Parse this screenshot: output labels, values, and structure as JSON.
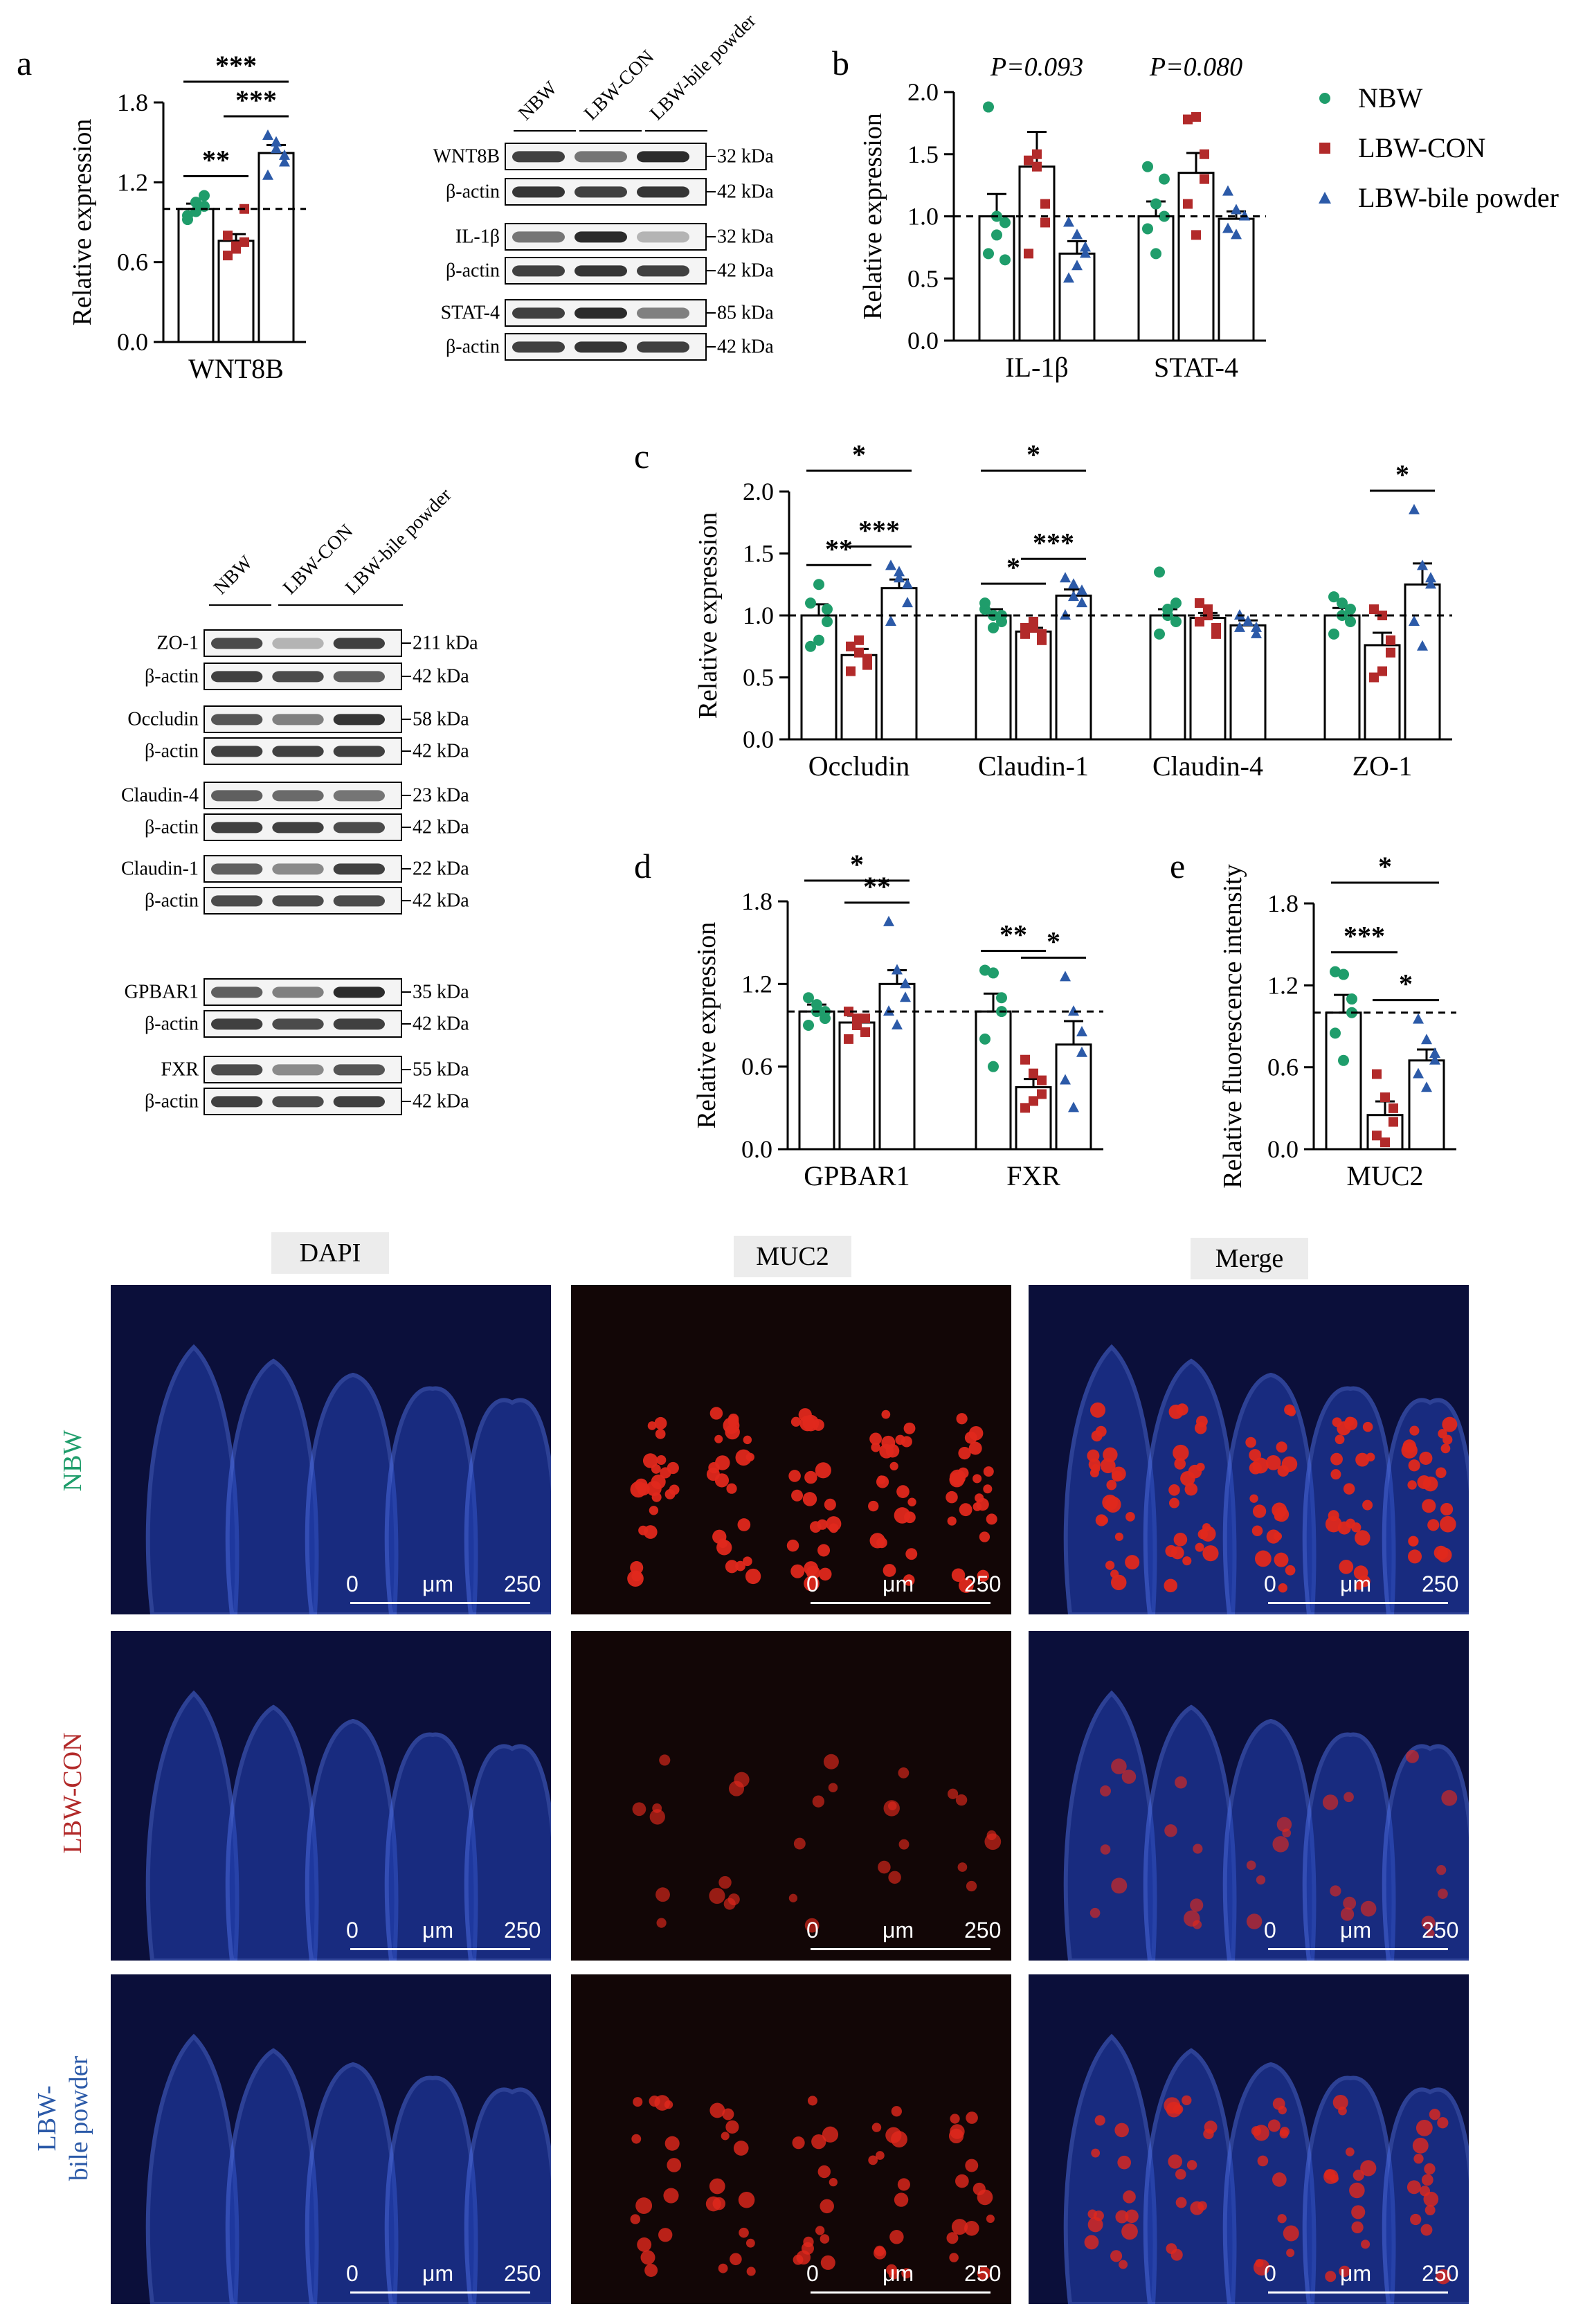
{
  "figure": {
    "panel_labels": [
      "a",
      "b",
      "c",
      "d",
      "e"
    ],
    "groups": [
      "NBW",
      "LBW-CON",
      "LBW-bile powder"
    ],
    "group_colors": {
      "NBW": "#1f9d6b",
      "LBW-CON": "#b22a2a",
      "LBW-bile powder": "#2c5aa8"
    },
    "legend": {
      "items": [
        "NBW",
        "LBW-CON",
        "LBW-bile powder"
      ],
      "placement": "right of panel b"
    }
  },
  "western_blot_a": {
    "lanes": [
      "NBW",
      "LBW-CON",
      "LBW-bile powder"
    ],
    "rows": [
      {
        "label": "WNT8B",
        "kda": "32 kDa"
      },
      {
        "label": "β-actin",
        "kda": "42 kDa"
      },
      {
        "label": "IL-1β",
        "kda": "32 kDa"
      },
      {
        "label": "β-actin",
        "kda": "42 kDa"
      },
      {
        "label": "STAT-4",
        "kda": "85 kDa"
      },
      {
        "label": "β-actin",
        "kda": "42 kDa"
      }
    ]
  },
  "western_blot_c": {
    "lanes": [
      "NBW",
      "LBW-CON",
      "LBW-bile powder"
    ],
    "rows": [
      {
        "label": "ZO-1",
        "kda": "211 kDa"
      },
      {
        "label": "β-actin",
        "kda": "42 kDa"
      },
      {
        "label": "Occludin",
        "kda": "58 kDa"
      },
      {
        "label": "β-actin",
        "kda": "42 kDa"
      },
      {
        "label": "Claudin-4",
        "kda": "23 kDa"
      },
      {
        "label": "β-actin",
        "kda": "42 kDa"
      },
      {
        "label": "Claudin-1",
        "kda": "22 kDa"
      },
      {
        "label": "β-actin",
        "kda": "42 kDa"
      },
      {
        "label": "GPBAR1",
        "kda": "35 kDa"
      },
      {
        "label": "β-actin",
        "kda": "42 kDa"
      },
      {
        "label": "FXR",
        "kda": "55 kDa"
      },
      {
        "label": "β-actin",
        "kda": "42 kDa"
      }
    ]
  },
  "chart_data": [
    {
      "panel": "a",
      "type": "bar",
      "ylabel": "Relative expression",
      "ylim": [
        0,
        1.8
      ],
      "yticks": [
        "0.0",
        "0.6",
        "1.2",
        "1.8"
      ],
      "categories": [
        "WNT8B"
      ],
      "series": [
        {
          "name": "NBW",
          "values": [
            1.0
          ],
          "sem": [
            0.04
          ],
          "points": [
            [
              0.95,
              1.05,
              1.1,
              0.92,
              0.98,
              1.02
            ]
          ]
        },
        {
          "name": "LBW-CON",
          "values": [
            0.76
          ],
          "sem": [
            0.05
          ],
          "points": [
            [
              0.65,
              0.7,
              0.75,
              0.8,
              0.72,
              1.0
            ]
          ]
        },
        {
          "name": "LBW-bile powder",
          "values": [
            1.42
          ],
          "sem": [
            0.06
          ],
          "points": [
            [
              1.55,
              1.5,
              1.4,
              1.25,
              1.45,
              1.35
            ]
          ]
        }
      ],
      "reference_line": 1.0,
      "significance": [
        {
          "pair": [
            0,
            1
          ],
          "label": "**",
          "cat": 0
        },
        {
          "pair": [
            1,
            2
          ],
          "label": "***",
          "cat": 0
        },
        {
          "pair": [
            0,
            2
          ],
          "label": "***",
          "cat": 0
        }
      ]
    },
    {
      "panel": "b",
      "type": "bar",
      "ylabel": "Relative expression",
      "ylim": [
        0,
        2.0
      ],
      "yticks": [
        "0.0",
        "0.5",
        "1.0",
        "1.5",
        "2.0"
      ],
      "categories": [
        "IL-1β",
        "STAT-4"
      ],
      "series": [
        {
          "name": "NBW",
          "values": [
            1.0,
            1.0
          ],
          "sem": [
            0.18,
            0.12
          ],
          "points": [
            [
              1.88,
              1.0,
              0.95,
              0.7,
              0.85,
              0.65
            ],
            [
              1.4,
              1.1,
              1.0,
              0.9,
              0.7,
              1.3
            ]
          ]
        },
        {
          "name": "LBW-CON",
          "values": [
            1.4,
            1.35
          ],
          "sem": [
            0.28,
            0.16
          ],
          "points": [
            [
              1.45,
              1.4,
              0.95,
              0.7,
              1.5,
              1.1
            ],
            [
              1.78,
              1.8,
              1.5,
              1.1,
              0.85,
              1.3
            ]
          ]
        },
        {
          "name": "LBW-bile powder",
          "values": [
            0.7,
            0.98
          ],
          "sem": [
            0.1,
            0.06
          ],
          "points": [
            [
              0.95,
              0.85,
              0.7,
              0.5,
              0.6,
              0.75
            ],
            [
              1.2,
              1.05,
              1.0,
              0.9,
              0.85,
              1.0
            ]
          ]
        }
      ],
      "reference_line": 1.0,
      "annotations": [
        {
          "cat": 0,
          "text": "P=0.093"
        },
        {
          "cat": 1,
          "text": "P=0.080"
        }
      ]
    },
    {
      "panel": "c",
      "type": "bar",
      "ylabel": "Relative expression",
      "ylim": [
        0,
        2.0
      ],
      "yticks": [
        "0.0",
        "0.5",
        "1.0",
        "1.5",
        "2.0"
      ],
      "categories": [
        "Occludin",
        "Claudin-1",
        "Claudin-4",
        "ZO-1"
      ],
      "series": [
        {
          "name": "NBW",
          "values": [
            1.0,
            1.0,
            1.0,
            1.0
          ],
          "sem": [
            0.09,
            0.05,
            0.05,
            0.06
          ],
          "points": [
            [
              1.1,
              1.25,
              0.95,
              0.75,
              0.8,
              1.05
            ],
            [
              1.05,
              1.0,
              0.95,
              1.1,
              0.9,
              1.0
            ],
            [
              1.35,
              1.0,
              0.95,
              0.85,
              1.05,
              1.1
            ],
            [
              1.15,
              1.0,
              0.95,
              0.85,
              1.1,
              1.05
            ]
          ]
        },
        {
          "name": "LBW-CON",
          "values": [
            0.68,
            0.87,
            0.98,
            0.76
          ],
          "sem": [
            0.05,
            0.03,
            0.04,
            0.1
          ],
          "points": [
            [
              0.75,
              0.7,
              0.6,
              0.55,
              0.8,
              0.65
            ],
            [
              0.9,
              0.95,
              0.8,
              0.85,
              0.9,
              0.85
            ],
            [
              1.1,
              1.05,
              0.9,
              0.95,
              1.0,
              0.85
            ],
            [
              1.05,
              1.0,
              0.8,
              0.5,
              0.55,
              0.7
            ]
          ]
        },
        {
          "name": "LBW-bile powder",
          "values": [
            1.22,
            1.16,
            0.92,
            1.25
          ],
          "sem": [
            0.07,
            0.05,
            0.04,
            0.17
          ],
          "points": [
            [
              1.4,
              1.35,
              1.1,
              0.95,
              1.3,
              1.25
            ],
            [
              1.3,
              1.25,
              1.1,
              1.0,
              1.15,
              1.2
            ],
            [
              1.0,
              0.95,
              0.85,
              0.9,
              0.95,
              0.9
            ],
            [
              1.85,
              1.4,
              1.25,
              0.95,
              0.75,
              1.3
            ]
          ]
        }
      ],
      "reference_line": 1.0,
      "significance": [
        {
          "pair": [
            0,
            1
          ],
          "label": "**",
          "cat": 0
        },
        {
          "pair": [
            1,
            2
          ],
          "label": "***",
          "cat": 0
        },
        {
          "pair": [
            0,
            2
          ],
          "label": "*",
          "cat": 0
        },
        {
          "pair": [
            0,
            1
          ],
          "label": "*",
          "cat": 1
        },
        {
          "pair": [
            1,
            2
          ],
          "label": "***",
          "cat": 1
        },
        {
          "pair": [
            0,
            2
          ],
          "label": "*",
          "cat": 1
        },
        {
          "pair": [
            1,
            2
          ],
          "label": "*",
          "cat": 3
        }
      ]
    },
    {
      "panel": "d",
      "type": "bar",
      "ylabel": "Relative expression",
      "ylim": [
        0,
        1.8
      ],
      "yticks": [
        "0.0",
        "0.6",
        "1.2",
        "1.8"
      ],
      "categories": [
        "GPBAR1",
        "FXR"
      ],
      "series": [
        {
          "name": "NBW",
          "values": [
            1.0,
            1.0
          ],
          "sem": [
            0.05,
            0.13
          ],
          "points": [
            [
              1.1,
              1.05,
              0.95,
              0.9,
              1.0,
              1.0
            ],
            [
              1.3,
              1.28,
              1.1,
              0.8,
              0.6,
              1.0
            ]
          ]
        },
        {
          "name": "LBW-CON",
          "values": [
            0.92,
            0.45
          ],
          "sem": [
            0.05,
            0.06
          ],
          "points": [
            [
              1.0,
              0.95,
              0.85,
              0.8,
              0.9,
              0.95
            ],
            [
              0.65,
              0.55,
              0.4,
              0.3,
              0.35,
              0.5
            ]
          ]
        },
        {
          "name": "LBW-bile powder",
          "values": [
            1.2,
            0.76
          ],
          "sem": [
            0.1,
            0.17
          ],
          "points": [
            [
              1.65,
              1.3,
              1.2,
              1.0,
              0.9,
              1.1
            ],
            [
              1.25,
              1.0,
              0.7,
              0.5,
              0.3,
              0.85
            ]
          ]
        }
      ],
      "reference_line": 1.0,
      "significance": [
        {
          "pair": [
            1,
            2
          ],
          "label": "**",
          "cat": 0
        },
        {
          "pair": [
            0,
            2
          ],
          "label": "*",
          "cat": 0
        },
        {
          "pair": [
            0,
            1
          ],
          "label": "**",
          "cat": 1
        },
        {
          "pair": [
            1,
            2
          ],
          "label": "*",
          "cat": 1
        }
      ]
    },
    {
      "panel": "e",
      "type": "bar",
      "ylabel": "Relative fluorescence intensity",
      "ylim": [
        0,
        1.8
      ],
      "yticks": [
        "0.0",
        "0.6",
        "1.2",
        "1.8"
      ],
      "categories": [
        "MUC2"
      ],
      "series": [
        {
          "name": "NBW",
          "values": [
            1.0
          ],
          "sem": [
            0.13
          ],
          "points": [
            [
              1.3,
              1.28,
              1.1,
              0.85,
              0.65,
              1.0
            ]
          ]
        },
        {
          "name": "LBW-CON",
          "values": [
            0.25
          ],
          "sem": [
            0.1
          ],
          "points": [
            [
              0.55,
              0.38,
              0.2,
              0.1,
              0.05,
              0.3
            ]
          ]
        },
        {
          "name": "LBW-bile powder",
          "values": [
            0.65
          ],
          "sem": [
            0.08
          ],
          "points": [
            [
              0.95,
              0.8,
              0.65,
              0.55,
              0.45,
              0.7
            ]
          ]
        }
      ],
      "reference_line": 1.0,
      "significance": [
        {
          "pair": [
            0,
            1
          ],
          "label": "***",
          "cat": 0
        },
        {
          "pair": [
            1,
            2
          ],
          "label": "*",
          "cat": 0
        },
        {
          "pair": [
            0,
            2
          ],
          "label": "*",
          "cat": 0
        }
      ]
    }
  ],
  "microscopy": {
    "channels": [
      "DAPI",
      "MUC2",
      "Merge"
    ],
    "rows": [
      "NBW",
      "LBW-CON",
      "LBW-bile powder"
    ],
    "row_label_lines": [
      [
        "NBW"
      ],
      [
        "LBW-CON"
      ],
      [
        "LBW-",
        "bile powder"
      ]
    ],
    "row_label_colors": [
      "#1f9d6b",
      "#b22a2a",
      "#2c5aa8"
    ],
    "scalebar": {
      "start": "0",
      "unit": "μm",
      "end": "250"
    },
    "muc2_intensity": [
      1.0,
      0.25,
      0.65
    ]
  }
}
